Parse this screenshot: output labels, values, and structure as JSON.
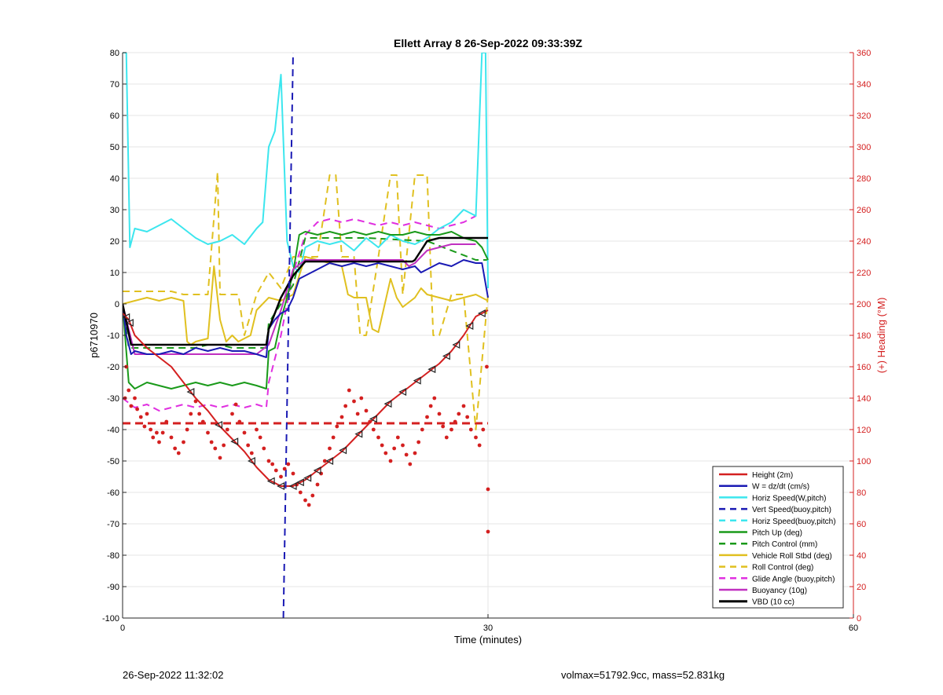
{
  "chart_data": {
    "type": "line",
    "title": "Ellett Array 8 26-Sep-2022 09:33:39Z",
    "xlabel": "Time (minutes)",
    "ylabel_left": "p6710970",
    "ylabel_right": "(+) Heading (°M)",
    "xlim": [
      0,
      60
    ],
    "ylim_left": [
      -100,
      80
    ],
    "ylim_right": [
      0,
      360
    ],
    "x_ticks": [
      0,
      30,
      60
    ],
    "y_ticks_left": [
      80,
      70,
      60,
      50,
      40,
      30,
      20,
      10,
      0,
      -10,
      -20,
      -30,
      -40,
      -50,
      -60,
      -70,
      -80,
      -90,
      -100
    ],
    "y_ticks_right": [
      360,
      340,
      320,
      300,
      280,
      260,
      240,
      220,
      200,
      180,
      160,
      140,
      120,
      100,
      80,
      60,
      40,
      20,
      0
    ],
    "grid": true,
    "legend_position": "bottom-right",
    "colors": {
      "height": "#d42020",
      "w": "#1a1ab4",
      "horiz_speed": "#3ce6ee",
      "vert_speed": "#1a1ab4",
      "horiz_speed_buoy": "#3ce6ee",
      "pitch_up": "#1a9a1a",
      "pitch_control": "#1a9a1a",
      "roll": "#e0c020",
      "roll_control": "#e0c020",
      "glide": "#e030e0",
      "buoyancy": "#c030c0",
      "vbd": "#000000",
      "heading": "#d42020",
      "right_axis": "#d42020"
    },
    "series": [
      {
        "key": "height",
        "name": "Height (2m)",
        "style": "solid",
        "x": [
          0,
          0.5,
          1,
          2,
          3,
          4,
          5,
          6,
          7,
          8,
          9,
          10,
          11,
          12,
          13,
          14,
          15,
          16,
          17,
          18,
          19,
          20,
          21,
          22,
          23,
          24,
          25,
          26,
          27,
          28,
          29,
          30
        ],
        "y": [
          -3,
          -5,
          -10,
          -14,
          -17,
          -20,
          -25,
          -30,
          -34,
          -39,
          -43,
          -47,
          -52,
          -56,
          -58,
          -58,
          -56,
          -53,
          -50,
          -47,
          -43,
          -39,
          -35,
          -31,
          -28,
          -25,
          -22,
          -19,
          -15,
          -10,
          -4,
          -2
        ]
      },
      {
        "key": "w",
        "name": "W = dz/dt (cm/s)",
        "style": "solid",
        "x": [
          0,
          0.3,
          0.7,
          1,
          2,
          3,
          4,
          5,
          6,
          7,
          8,
          9,
          10,
          11,
          11.8,
          12,
          12.5,
          13,
          13.5,
          14,
          14.5,
          15,
          16,
          17,
          18,
          19,
          20,
          21,
          22,
          23,
          24,
          24.5,
          25,
          26,
          27,
          28,
          29,
          29.5,
          30
        ],
        "y": [
          0,
          -10,
          -16,
          -15,
          -16,
          -16,
          -15,
          -16,
          -14,
          -15,
          -14,
          -15,
          -15,
          -16,
          -17,
          -8,
          -5,
          -3,
          -2,
          2,
          8,
          9,
          11,
          13,
          12,
          13,
          12,
          13,
          12,
          11,
          12,
          10,
          11,
          13,
          12,
          14,
          13,
          13,
          2
        ]
      },
      {
        "key": "horiz_speed",
        "name": "Horiz Speed(W,pitch)",
        "style": "solid",
        "x": [
          0,
          0.3,
          0.6,
          1,
          2,
          3,
          4,
          5,
          6,
          7,
          8,
          9,
          10,
          11,
          11.5,
          12,
          12.5,
          13,
          13.5,
          14,
          14.5,
          15,
          16,
          17,
          18,
          19,
          20,
          21,
          22,
          23,
          24,
          25,
          26,
          27,
          28,
          29,
          29.5,
          29.8,
          30
        ],
        "y": [
          80,
          80,
          18,
          24,
          23,
          25,
          27,
          24,
          21,
          19,
          20,
          22,
          19,
          24,
          26,
          50,
          55,
          73,
          20,
          12,
          10,
          18,
          20,
          19,
          20,
          17,
          21,
          18,
          22,
          20,
          19,
          21,
          24,
          26,
          30,
          28,
          80,
          80,
          5
        ]
      },
      {
        "key": "vert_speed",
        "name": "Vert Speed(buoy,pitch)",
        "style": "dashed",
        "x": [
          13.2,
          14
        ],
        "y": [
          -100,
          80
        ]
      },
      {
        "key": "horiz_speed_buoy",
        "name": "Horiz Speed(buoy,pitch)",
        "style": "dashed",
        "x": [],
        "y": []
      },
      {
        "key": "pitch_up",
        "name": "Pitch Up (deg)",
        "style": "solid",
        "x": [
          0,
          0.5,
          1,
          2,
          3,
          4,
          5,
          6,
          7,
          8,
          9,
          10,
          11,
          11.8,
          12,
          12.5,
          13,
          13.5,
          14,
          14.5,
          15,
          16,
          17,
          18,
          19,
          20,
          21,
          22,
          23,
          24,
          25,
          26,
          27,
          28,
          29,
          29.5,
          30
        ],
        "y": [
          0,
          -25,
          -27,
          -25,
          -26,
          -27,
          -26,
          -25,
          -26,
          -25,
          -26,
          -25,
          -26,
          -27,
          -15,
          -14,
          -5,
          2,
          10,
          22,
          23,
          22,
          23,
          22,
          23,
          22,
          23,
          22,
          22,
          23,
          22,
          22,
          23,
          21,
          20,
          18,
          14
        ]
      },
      {
        "key": "pitch_control",
        "name": "Pitch Control (mm)",
        "style": "dashed",
        "x": [
          0,
          0.5,
          1,
          5,
          6,
          7,
          8,
          9,
          10,
          11,
          11.8,
          12,
          14,
          15,
          20,
          25,
          29,
          30
        ],
        "y": [
          0,
          -14,
          -14,
          -14,
          -14,
          -13,
          -13,
          -14,
          -14,
          -14,
          -14,
          -6,
          6,
          21,
          21,
          20,
          14,
          14
        ]
      },
      {
        "key": "roll",
        "name": "Vehicle Roll Stbd (deg)",
        "style": "solid",
        "x": [
          0,
          1,
          2,
          3,
          4,
          5,
          5.3,
          5.6,
          6,
          7,
          7.5,
          8,
          8.5,
          9,
          9.5,
          10,
          10.5,
          11,
          12,
          13,
          14,
          15,
          16,
          17,
          18,
          18.5,
          19,
          20,
          20.5,
          21,
          22,
          22.5,
          23,
          24,
          24.5,
          25,
          26,
          27,
          28,
          29,
          30
        ],
        "y": [
          0,
          1,
          2,
          1,
          2,
          1,
          -12,
          -13,
          -12,
          -11,
          12,
          -5,
          -12,
          -10,
          -12,
          -11,
          -10,
          -2,
          2,
          1,
          3,
          15,
          14,
          13,
          12,
          3,
          2,
          2,
          -8,
          -9,
          8,
          2,
          -1,
          2,
          5,
          3,
          2,
          1,
          2,
          3,
          1
        ]
      },
      {
        "key": "roll_control",
        "name": "Roll Control (deg)",
        "style": "dashed",
        "x": [
          0,
          2,
          4,
          5,
          5.5,
          6,
          7,
          7.8,
          8,
          8.5,
          9,
          9.5,
          10,
          11,
          12,
          13,
          14,
          15,
          16,
          17,
          17.5,
          18,
          19,
          19.5,
          20,
          21,
          22,
          22.5,
          23,
          24,
          25,
          25.5,
          26,
          27,
          28,
          29,
          30
        ],
        "y": [
          4,
          4,
          4,
          3,
          3,
          3,
          3,
          42,
          3,
          3,
          3,
          3,
          -10,
          3,
          10,
          5,
          15,
          15,
          15,
          41,
          41,
          15,
          15,
          -10,
          -10,
          15,
          41,
          41,
          3,
          41,
          41,
          -10,
          -10,
          3,
          3,
          -40,
          3
        ]
      },
      {
        "key": "glide",
        "name": "Glide Angle (buoy,pitch)",
        "style": "dashed",
        "x": [
          0,
          1,
          2,
          3,
          4,
          5,
          6,
          7,
          8,
          9,
          10,
          11,
          11.8,
          12,
          13,
          14,
          15,
          16,
          17,
          18,
          19,
          20,
          21,
          22,
          23,
          24,
          25,
          26,
          27,
          28,
          29
        ],
        "y": [
          -30,
          -33,
          -32,
          -34,
          -33,
          -32,
          -33,
          -32,
          -33,
          -32,
          -33,
          -32,
          -33,
          -25,
          -10,
          10,
          22,
          26,
          27,
          26,
          27,
          26,
          25,
          26,
          25,
          26,
          25,
          24,
          25,
          26,
          28
        ]
      },
      {
        "key": "buoyancy",
        "name": "Buoyancy (10g)",
        "style": "solid",
        "x": [
          0,
          1,
          2,
          3,
          4,
          5,
          6,
          7,
          8,
          9,
          10,
          11,
          12,
          13,
          14,
          15,
          20,
          22,
          23,
          23.5,
          24,
          25,
          26,
          27,
          28,
          29
        ],
        "y": [
          0,
          -16,
          -16,
          -16,
          -16,
          -16,
          -16,
          -16,
          -16,
          -16,
          -16,
          -16,
          -13,
          -2,
          11,
          14,
          14,
          14,
          14,
          12,
          13,
          17,
          18,
          19,
          19,
          19
        ]
      },
      {
        "key": "vbd",
        "name": "VBD (10 cc)",
        "style": "solid",
        "x": [
          0,
          0.7,
          1,
          2,
          4,
          6,
          8,
          10,
          11.8,
          12,
          13,
          14,
          15,
          16,
          18,
          20,
          22,
          23.8,
          24,
          24.5,
          25,
          26,
          27,
          28,
          29,
          30
        ],
        "y": [
          0,
          -13,
          -13,
          -13,
          -13,
          -13,
          -13,
          -13,
          -13,
          -8,
          2,
          9,
          13.5,
          13.5,
          13.5,
          13.5,
          13.5,
          13.5,
          14,
          17,
          20,
          21,
          21,
          21,
          21,
          21
        ]
      }
    ],
    "heading": {
      "name": "Heading",
      "reference": 124,
      "points": [
        [
          0.2,
          140
        ],
        [
          0.3,
          160
        ],
        [
          0.5,
          145
        ],
        [
          0.7,
          135
        ],
        [
          1.0,
          140
        ],
        [
          1.2,
          133
        ],
        [
          1.5,
          128
        ],
        [
          1.8,
          122
        ],
        [
          2.0,
          130
        ],
        [
          2.3,
          120
        ],
        [
          2.5,
          115
        ],
        [
          2.8,
          118
        ],
        [
          3.0,
          112
        ],
        [
          3.3,
          118
        ],
        [
          3.6,
          125
        ],
        [
          4.0,
          115
        ],
        [
          4.3,
          108
        ],
        [
          4.6,
          105
        ],
        [
          5.0,
          112
        ],
        [
          5.3,
          120
        ],
        [
          5.6,
          130
        ],
        [
          6.0,
          138
        ],
        [
          6.3,
          130
        ],
        [
          6.6,
          125
        ],
        [
          7.0,
          118
        ],
        [
          7.3,
          112
        ],
        [
          7.6,
          108
        ],
        [
          8.0,
          102
        ],
        [
          8.3,
          110
        ],
        [
          8.6,
          120
        ],
        [
          9.0,
          130
        ],
        [
          9.3,
          136
        ],
        [
          9.6,
          125
        ],
        [
          10.0,
          118
        ],
        [
          10.3,
          110
        ],
        [
          10.6,
          105
        ],
        [
          11.0,
          120
        ],
        [
          11.3,
          115
        ],
        [
          11.6,
          108
        ],
        [
          12.0,
          100
        ],
        [
          12.3,
          98
        ],
        [
          12.6,
          94
        ],
        [
          13.0,
          90
        ],
        [
          13.3,
          95
        ],
        [
          13.6,
          98
        ],
        [
          14.0,
          92
        ],
        [
          14.3,
          85
        ],
        [
          14.6,
          80
        ],
        [
          15.0,
          75
        ],
        [
          15.3,
          72
        ],
        [
          15.6,
          78
        ],
        [
          16.0,
          85
        ],
        [
          16.3,
          92
        ],
        [
          16.6,
          100
        ],
        [
          17.0,
          108
        ],
        [
          17.3,
          115
        ],
        [
          17.6,
          122
        ],
        [
          18.0,
          128
        ],
        [
          18.3,
          135
        ],
        [
          18.6,
          145
        ],
        [
          19.0,
          138
        ],
        [
          19.3,
          130
        ],
        [
          19.6,
          140
        ],
        [
          20.0,
          132
        ],
        [
          20.3,
          125
        ],
        [
          20.6,
          120
        ],
        [
          21.0,
          115
        ],
        [
          21.3,
          110
        ],
        [
          21.6,
          105
        ],
        [
          22.0,
          100
        ],
        [
          22.3,
          108
        ],
        [
          22.6,
          115
        ],
        [
          23.0,
          110
        ],
        [
          23.3,
          104
        ],
        [
          23.6,
          98
        ],
        [
          24.0,
          105
        ],
        [
          24.3,
          112
        ],
        [
          24.6,
          120
        ],
        [
          25.0,
          128
        ],
        [
          25.3,
          135
        ],
        [
          25.6,
          140
        ],
        [
          26.0,
          130
        ],
        [
          26.3,
          122
        ],
        [
          26.6,
          115
        ],
        [
          27.0,
          120
        ],
        [
          27.3,
          125
        ],
        [
          27.6,
          130
        ],
        [
          28.0,
          135
        ],
        [
          28.3,
          128
        ],
        [
          28.6,
          120
        ],
        [
          29.0,
          115
        ],
        [
          29.3,
          110
        ],
        [
          29.6,
          120
        ],
        [
          29.9,
          160
        ],
        [
          30.0,
          82
        ],
        [
          30.0,
          55
        ]
      ]
    },
    "markers": {
      "name": "Height (2m) triangles",
      "x": [
        0.3,
        0.6,
        5.6,
        7.9,
        9.2,
        10.6,
        12.2,
        13.0,
        14.0,
        14.6,
        15.2,
        16.0,
        17.0,
        18.1,
        19.4,
        20.6,
        21.8,
        23.0,
        24.2,
        25.4,
        26.6,
        27.4,
        28.5,
        29.5
      ]
    }
  },
  "footer": {
    "left": "26-Sep-2022 11:32:02",
    "right": "volmax=51792.9cc, mass=52.831kg"
  }
}
